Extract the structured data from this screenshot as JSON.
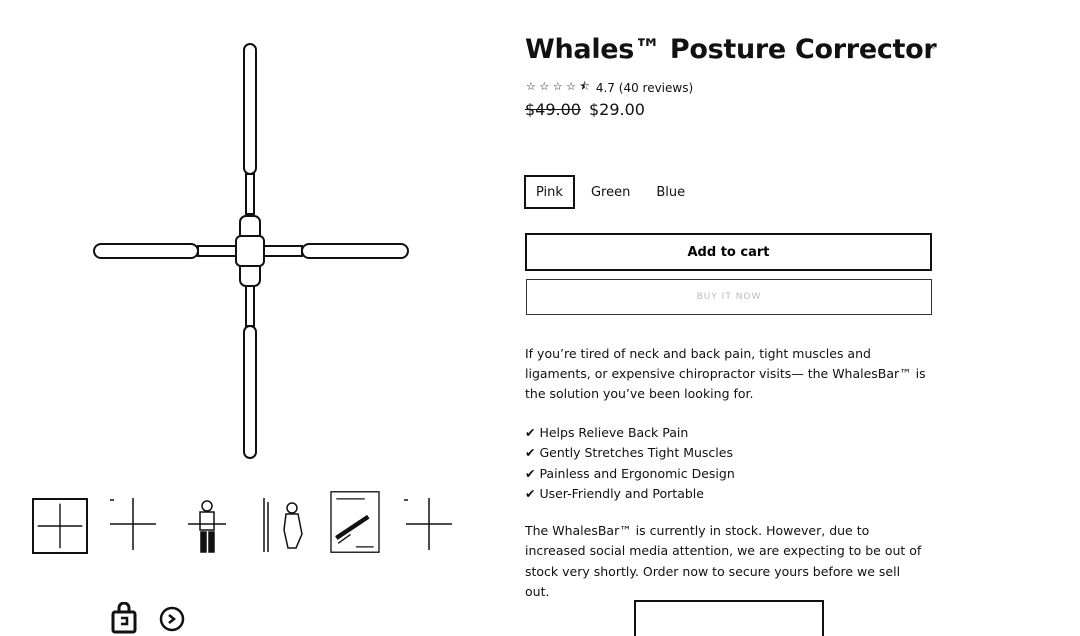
{
  "product": {
    "title": "Whales™ Posture Corrector",
    "rating": {
      "stars": "☆ ☆ ☆ ☆ ⯪",
      "text": "4.7 (40 reviews)"
    },
    "price_old": "$49.00",
    "price_new": "$29.00",
    "colors": [
      "Pink",
      "Green",
      "Blue"
    ],
    "selected_color": "Pink",
    "add_to_cart_label": "Add to cart",
    "buy_now_label": "BUY IT NOW",
    "description": "If you’re tired of neck and back pain, tight muscles and ligaments, or expensive chiropractor visits— the WhalesBar™ is the solution you’ve been looking for.",
    "features": [
      "✔ Helps Relieve Back Pain",
      "✔ Gently Stretches Tight Muscles",
      "✔ Painless and Ergonomic Design",
      "✔ User-Friendly and Portable"
    ],
    "stock_note": "The WhalesBar™ is currently in stock. However, due to increased social media attention, we are expecting to be out of stock very shortly. Order now to secure yours before we sell out."
  },
  "gallery": {
    "thumbnails": [
      "cross-bar-thumb",
      "cross-bar-thumb-2",
      "person-front-thumb",
      "person-side-thumb",
      "instruction-thumb",
      "cross-bar-thumb-3"
    ],
    "active_index": 0
  },
  "social": [
    "shopping-bag-icon",
    "share-icon"
  ],
  "colors": {
    "ink": "#111111",
    "border": "#111111",
    "muted": "#bbbbbb"
  }
}
